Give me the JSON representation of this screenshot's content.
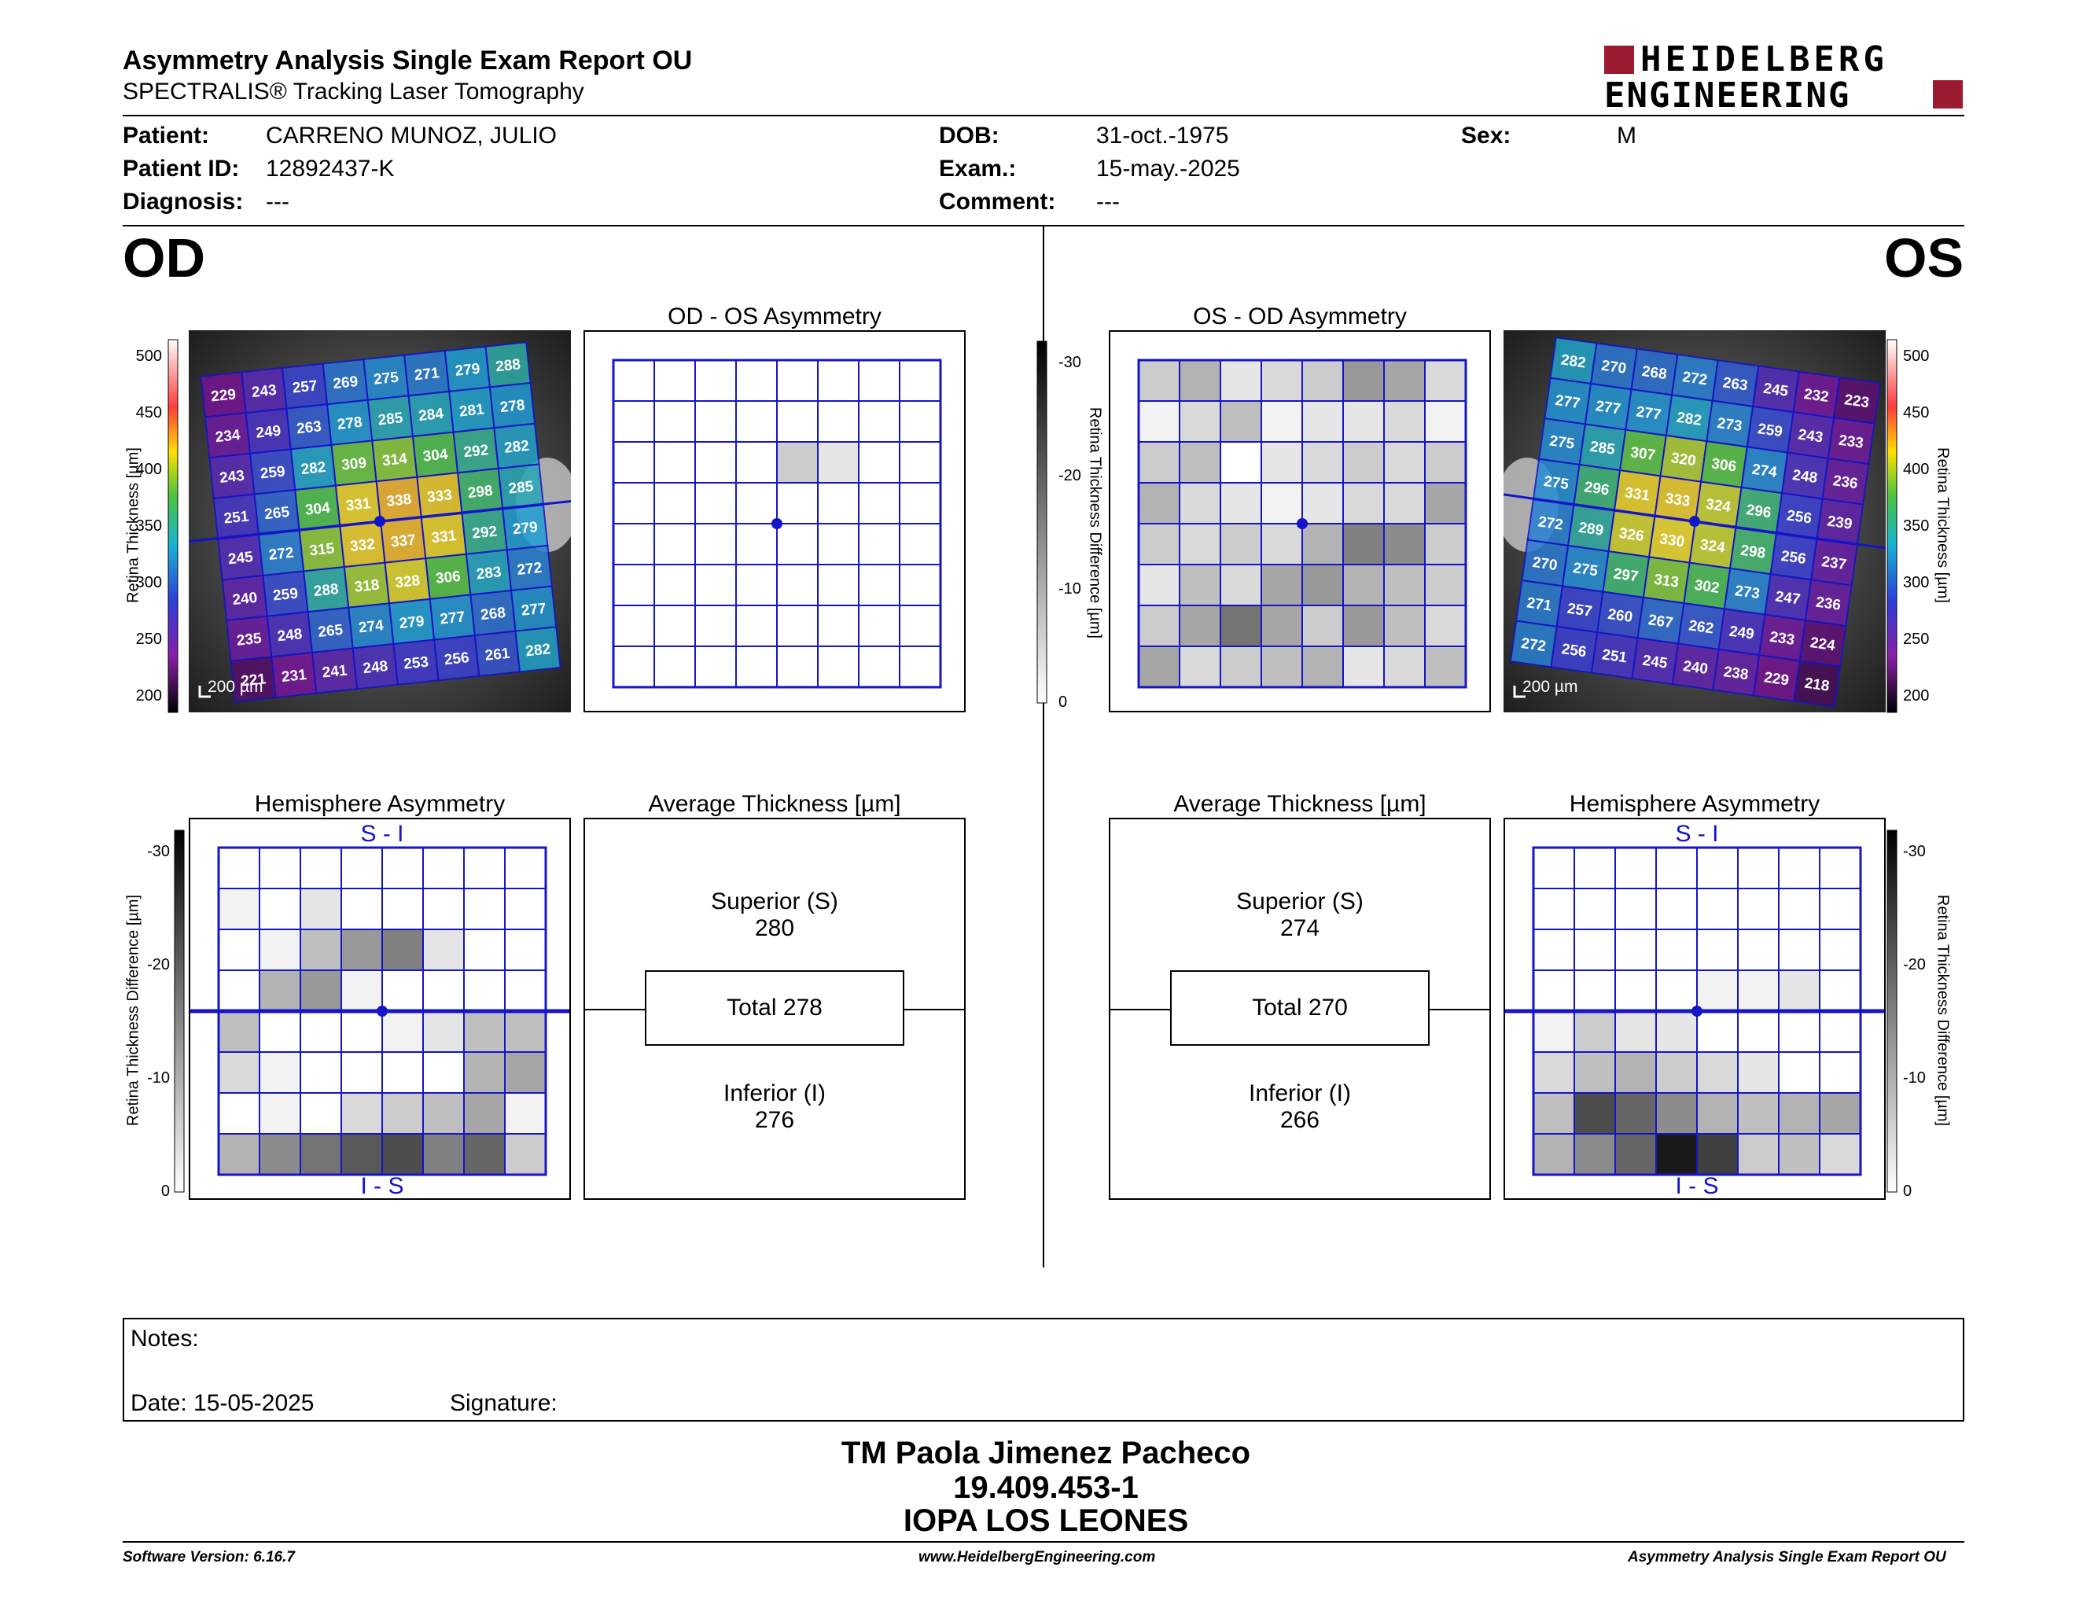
{
  "header": {
    "title": "Asymmetry Analysis Single Exam Report OU",
    "subtitle": "SPECTRALIS® Tracking Laser Tomography",
    "logo_line1": "HEIDELBERG",
    "logo_line2": "ENGINEERING",
    "brand_color": "#9b1b30"
  },
  "patient": {
    "patient_label": "Patient:",
    "patient": "CARRENO MUNOZ, JULIO",
    "id_label": "Patient ID:",
    "id": "12892437-K",
    "diagnosis_label": "Diagnosis:",
    "diagnosis": "---",
    "dob_label": "DOB:",
    "dob": "31-oct.-1975",
    "exam_label": "Exam.:",
    "exam": "15-may.-2025",
    "comment_label": "Comment:",
    "comment": "---",
    "sex_label": "Sex:",
    "sex": "M"
  },
  "od": {
    "eye": "OD",
    "asym_title": "OD - OS Asymmetry",
    "hemi_title": "Hemisphere Asymmetry",
    "avg_title": "Average Thickness [µm]",
    "superior_label": "Superior (S)",
    "superior": "280",
    "total": "Total 278",
    "inferior_label": "Inferior (I)",
    "inferior": "276",
    "grid": [
      [
        229,
        243,
        257,
        269,
        275,
        271,
        279,
        288
      ],
      [
        234,
        249,
        263,
        278,
        285,
        284,
        281,
        278
      ],
      [
        243,
        259,
        282,
        309,
        314,
        304,
        292,
        282
      ],
      [
        251,
        265,
        304,
        331,
        338,
        333,
        298,
        285
      ],
      [
        245,
        272,
        315,
        332,
        337,
        331,
        292,
        279
      ],
      [
        240,
        259,
        288,
        318,
        328,
        306,
        283,
        272
      ],
      [
        235,
        248,
        265,
        274,
        279,
        277,
        268,
        277
      ],
      [
        221,
        231,
        241,
        248,
        253,
        256,
        261,
        282
      ]
    ],
    "asym_shade": [
      [
        0,
        0,
        0,
        0,
        0,
        0,
        0,
        0
      ],
      [
        0,
        0,
        0,
        0,
        0,
        0,
        0,
        0
      ],
      [
        0,
        0,
        0,
        0,
        0.2,
        0.1,
        0,
        0
      ],
      [
        0,
        0,
        0,
        0,
        0,
        0,
        0,
        0
      ],
      [
        0,
        0,
        0,
        0,
        0,
        0,
        0,
        0
      ],
      [
        0,
        0,
        0,
        0,
        0,
        0,
        0,
        0
      ],
      [
        0,
        0,
        0,
        0,
        0,
        0,
        0,
        0
      ],
      [
        0,
        0,
        0,
        0,
        0,
        0,
        0,
        0
      ]
    ],
    "hemi_shade": [
      [
        0,
        0,
        0,
        0,
        0,
        0,
        0,
        0
      ],
      [
        0.05,
        0,
        0.1,
        0,
        0,
        0,
        0,
        0
      ],
      [
        0,
        0.05,
        0.25,
        0.4,
        0.5,
        0.1,
        0,
        0
      ],
      [
        0,
        0.3,
        0.4,
        0.05,
        0,
        0,
        0,
        0
      ],
      [
        0.25,
        0,
        0,
        0,
        0.05,
        0.1,
        0.25,
        0.25
      ],
      [
        0.15,
        0.05,
        0,
        0,
        0,
        0,
        0.3,
        0.35
      ],
      [
        0,
        0.05,
        0,
        0.15,
        0.2,
        0.25,
        0.35,
        0.05
      ],
      [
        0.3,
        0.45,
        0.55,
        0.65,
        0.7,
        0.5,
        0.6,
        0.2
      ]
    ],
    "hemi_top": "S - I",
    "hemi_bottom": "I - S",
    "scalebar": "200 µm"
  },
  "os": {
    "eye": "OS",
    "asym_title": "OS - OD Asymmetry",
    "hemi_title": "Hemisphere Asymmetry",
    "avg_title": "Average Thickness [µm]",
    "superior_label": "Superior (S)",
    "superior": "274",
    "total": "Total 270",
    "inferior_label": "Inferior (I)",
    "inferior": "266",
    "grid": [
      [
        282,
        270,
        268,
        272,
        263,
        245,
        232,
        223
      ],
      [
        277,
        277,
        277,
        282,
        273,
        259,
        243,
        233
      ],
      [
        275,
        285,
        307,
        320,
        306,
        274,
        248,
        236
      ],
      [
        275,
        296,
        331,
        333,
        324,
        296,
        256,
        239
      ],
      [
        272,
        289,
        326,
        330,
        324,
        298,
        256,
        237
      ],
      [
        270,
        275,
        297,
        313,
        302,
        273,
        247,
        236
      ],
      [
        271,
        257,
        260,
        267,
        262,
        249,
        233,
        224
      ],
      [
        272,
        256,
        251,
        245,
        240,
        238,
        229,
        218
      ]
    ],
    "asym_shade": [
      [
        0.2,
        0.3,
        0.1,
        0.15,
        0.2,
        0.4,
        0.35,
        0.15
      ],
      [
        0.05,
        0.15,
        0.25,
        0.05,
        0.1,
        0.1,
        0.15,
        0.05
      ],
      [
        0.2,
        0.25,
        0,
        0.1,
        0.15,
        0.2,
        0.15,
        0.2
      ],
      [
        0.3,
        0.15,
        0.1,
        0.05,
        0.1,
        0.15,
        0.15,
        0.35
      ],
      [
        0.2,
        0.15,
        0.2,
        0.15,
        0.3,
        0.5,
        0.45,
        0.2
      ],
      [
        0.1,
        0.25,
        0.15,
        0.35,
        0.4,
        0.3,
        0.25,
        0.2
      ],
      [
        0.2,
        0.35,
        0.55,
        0.35,
        0.2,
        0.4,
        0.25,
        0.15
      ],
      [
        0.35,
        0.15,
        0.2,
        0.25,
        0.3,
        0.1,
        0.15,
        0.25
      ]
    ],
    "hemi_shade": [
      [
        0,
        0,
        0,
        0,
        0,
        0,
        0,
        0
      ],
      [
        0,
        0,
        0,
        0,
        0,
        0,
        0,
        0
      ],
      [
        0,
        0,
        0,
        0,
        0,
        0,
        0,
        0
      ],
      [
        0,
        0,
        0,
        0,
        0.05,
        0.05,
        0.1,
        0
      ],
      [
        0.05,
        0.2,
        0.1,
        0.1,
        0,
        0,
        0,
        0
      ],
      [
        0.15,
        0.25,
        0.3,
        0.2,
        0.15,
        0.1,
        0,
        0
      ],
      [
        0.25,
        0.7,
        0.6,
        0.45,
        0.3,
        0.25,
        0.3,
        0.35
      ],
      [
        0.3,
        0.45,
        0.6,
        0.9,
        0.75,
        0.2,
        0.25,
        0.15
      ]
    ],
    "hemi_top": "S - I",
    "hemi_bottom": "I - S",
    "scalebar": "200 µm"
  },
  "scales": {
    "thickness_label": "Retina Thickness [µm]",
    "thickness_ticks": [
      "500",
      "450",
      "400",
      "350",
      "300",
      "250",
      "200"
    ],
    "diff_label": "Retina Thickness Difference [µm]",
    "diff_ticks": [
      "-30",
      "-20",
      "-10",
      "0"
    ]
  },
  "notes": {
    "label": "Notes:",
    "date": "Date: 15-05-2025",
    "signature": "Signature:"
  },
  "signatory": {
    "name": "TM Paola Jimenez Pacheco",
    "rut": "19.409.453-1",
    "institution": "IOPA LOS LEONES"
  },
  "footer": {
    "version": "Software Version: 6.16.7",
    "url": "www.HeidelbergEngineering.com",
    "report": "Asymmetry Analysis Single Exam Report OU"
  }
}
